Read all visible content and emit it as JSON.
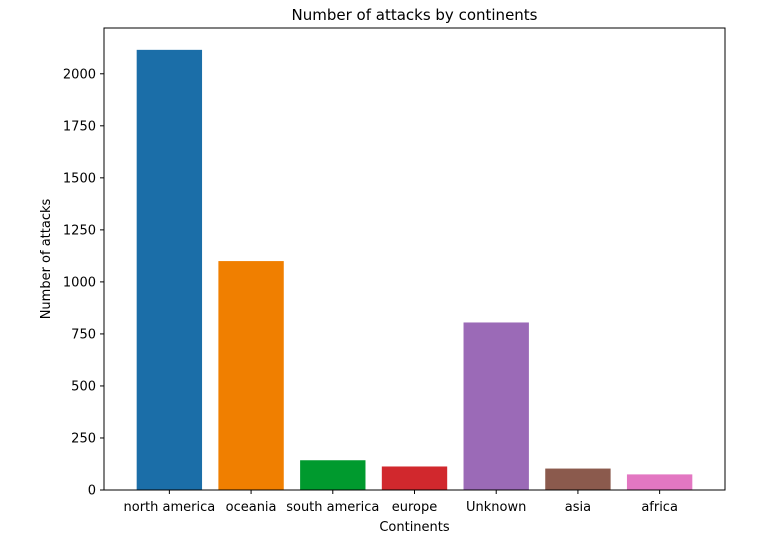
{
  "chart_data": {
    "type": "bar",
    "title": "Number of attacks by continents",
    "xlabel": "Continents",
    "ylabel": "Number of attacks",
    "categories": [
      "north america",
      "oceania",
      "south america",
      "europe",
      "Unknown",
      "asia",
      "africa"
    ],
    "values": [
      2115,
      1100,
      143,
      113,
      805,
      103,
      75
    ],
    "colors": [
      "#1b6ea8",
      "#f07f00",
      "#009a2e",
      "#d1282d",
      "#9b6ab7",
      "#8b5a4d",
      "#e377c2"
    ],
    "ylim": [
      0,
      2220
    ],
    "yticks": [
      0,
      250,
      500,
      750,
      1000,
      1250,
      1500,
      1750,
      2000
    ],
    "grid": false,
    "legend": "none"
  }
}
